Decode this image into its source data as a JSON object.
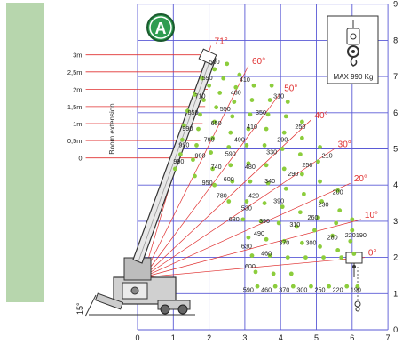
{
  "badge": "A",
  "max_box": {
    "text": "MAX 990 Kg"
  },
  "vertical_label": "Boom extension",
  "tilt_label": "15°",
  "x_ticks": [
    "0",
    "1",
    "2",
    "3",
    "4",
    "5",
    "6",
    "7"
  ],
  "y_ticks": [
    "0",
    "1",
    "2",
    "3",
    "4",
    "5",
    "6",
    "7",
    "8",
    "9"
  ],
  "extensions": [
    {
      "label": "3m",
      "y": 7.6
    },
    {
      "label": "2,5m",
      "y": 7.13
    },
    {
      "label": "2m",
      "y": 6.65
    },
    {
      "label": "1,5m",
      "y": 6.17
    },
    {
      "label": "1m",
      "y": 5.7
    },
    {
      "label": "0,5m",
      "y": 5.23
    },
    {
      "label": "0",
      "y": 4.75
    }
  ],
  "angles": [
    {
      "label": "71°",
      "x": 2.15,
      "y": 7.9
    },
    {
      "label": "60°",
      "x": 3.2,
      "y": 7.35
    },
    {
      "label": "50°",
      "x": 4.1,
      "y": 6.6
    },
    {
      "label": "40°",
      "x": 4.95,
      "y": 5.85
    },
    {
      "label": "30°",
      "x": 5.6,
      "y": 5.05
    },
    {
      "label": "20°",
      "x": 6.05,
      "y": 4.1
    },
    {
      "label": "10°",
      "x": 6.35,
      "y": 3.1
    },
    {
      "label": "0°",
      "x": 6.45,
      "y": 2.05
    }
  ],
  "capacity_labels": [
    {
      "t": "500",
      "x": 2.15,
      "y": 7.35
    },
    {
      "t": "590",
      "x": 1.95,
      "y": 6.9
    },
    {
      "t": "410",
      "x": 3.0,
      "y": 6.85
    },
    {
      "t": "710",
      "x": 1.75,
      "y": 6.4
    },
    {
      "t": "480",
      "x": 2.75,
      "y": 6.5
    },
    {
      "t": "310",
      "x": 3.95,
      "y": 6.4
    },
    {
      "t": "850",
      "x": 1.55,
      "y": 5.95
    },
    {
      "t": "550",
      "x": 2.45,
      "y": 6.05
    },
    {
      "t": "350",
      "x": 3.45,
      "y": 5.95
    },
    {
      "t": "990",
      "x": 1.4,
      "y": 5.5
    },
    {
      "t": "650",
      "x": 2.2,
      "y": 5.65
    },
    {
      "t": "410",
      "x": 3.2,
      "y": 5.55
    },
    {
      "t": "250",
      "x": 4.55,
      "y": 5.55
    },
    {
      "t": "990",
      "x": 1.3,
      "y": 5.05
    },
    {
      "t": "790",
      "x": 2.0,
      "y": 5.2
    },
    {
      "t": "490",
      "x": 2.85,
      "y": 5.2
    },
    {
      "t": "290",
      "x": 4.05,
      "y": 5.2
    },
    {
      "t": "990",
      "x": 1.75,
      "y": 4.75
    },
    {
      "t": "590",
      "x": 2.6,
      "y": 4.8
    },
    {
      "t": "330",
      "x": 3.75,
      "y": 4.85
    },
    {
      "t": "210",
      "x": 5.3,
      "y": 4.75
    },
    {
      "t": "990",
      "x": 1.15,
      "y": 4.6
    },
    {
      "t": "740",
      "x": 2.2,
      "y": 4.45
    },
    {
      "t": "480",
      "x": 3.15,
      "y": 4.45
    },
    {
      "t": "250",
      "x": 4.75,
      "y": 4.5
    },
    {
      "t": "600",
      "x": 2.55,
      "y": 4.1
    },
    {
      "t": "290",
      "x": 4.35,
      "y": 4.25
    },
    {
      "t": "950",
      "x": 1.95,
      "y": 4.0
    },
    {
      "t": "340",
      "x": 3.7,
      "y": 4.05
    },
    {
      "t": "780",
      "x": 2.35,
      "y": 3.65
    },
    {
      "t": "420",
      "x": 3.25,
      "y": 3.65
    },
    {
      "t": "200",
      "x": 5.6,
      "y": 3.75
    },
    {
      "t": "530",
      "x": 3.05,
      "y": 3.3
    },
    {
      "t": "390",
      "x": 3.95,
      "y": 3.5
    },
    {
      "t": "230",
      "x": 5.2,
      "y": 3.4
    },
    {
      "t": "680",
      "x": 2.7,
      "y": 3.0
    },
    {
      "t": "390",
      "x": 3.55,
      "y": 2.95
    },
    {
      "t": "260",
      "x": 4.9,
      "y": 3.05
    },
    {
      "t": "490",
      "x": 3.4,
      "y": 2.6
    },
    {
      "t": "310",
      "x": 4.4,
      "y": 2.85
    },
    {
      "t": "630",
      "x": 3.05,
      "y": 2.25
    },
    {
      "t": "370",
      "x": 4.1,
      "y": 2.35
    },
    {
      "t": "280",
      "x": 5.45,
      "y": 2.5
    },
    {
      "t": "220",
      "x": 5.95,
      "y": 2.55
    },
    {
      "t": "190",
      "x": 6.25,
      "y": 2.55
    },
    {
      "t": "460",
      "x": 3.6,
      "y": 2.05
    },
    {
      "t": "300",
      "x": 4.85,
      "y": 2.35
    },
    {
      "t": "600",
      "x": 3.15,
      "y": 1.7
    },
    {
      "t": "590",
      "x": 3.1,
      "y": 1.05
    },
    {
      "t": "460",
      "x": 3.6,
      "y": 1.05
    },
    {
      "t": "370",
      "x": 4.1,
      "y": 1.05
    },
    {
      "t": "300",
      "x": 4.6,
      "y": 1.05
    },
    {
      "t": "250",
      "x": 5.1,
      "y": 1.05
    },
    {
      "t": "220",
      "x": 5.6,
      "y": 1.05
    },
    {
      "t": "190",
      "x": 6.1,
      "y": 1.05
    }
  ],
  "points": [
    [
      1.8,
      6.95
    ],
    [
      2.15,
      7.2
    ],
    [
      2.5,
      7.35
    ],
    [
      1.6,
      6.5
    ],
    [
      2.0,
      6.75
    ],
    [
      2.4,
      6.95
    ],
    [
      2.85,
      7.05
    ],
    [
      1.4,
      6.05
    ],
    [
      1.85,
      6.35
    ],
    [
      2.3,
      6.55
    ],
    [
      2.75,
      6.7
    ],
    [
      3.25,
      6.75
    ],
    [
      3.75,
      6.75
    ],
    [
      1.3,
      5.65
    ],
    [
      1.75,
      5.95
    ],
    [
      2.2,
      6.15
    ],
    [
      2.7,
      6.3
    ],
    [
      3.2,
      6.35
    ],
    [
      3.7,
      6.35
    ],
    [
      4.2,
      6.3
    ],
    [
      1.25,
      5.25
    ],
    [
      1.7,
      5.55
    ],
    [
      2.15,
      5.75
    ],
    [
      2.65,
      5.9
    ],
    [
      3.15,
      5.95
    ],
    [
      3.65,
      5.95
    ],
    [
      4.15,
      5.9
    ],
    [
      4.6,
      5.75
    ],
    [
      1.2,
      4.85
    ],
    [
      1.65,
      5.1
    ],
    [
      2.1,
      5.3
    ],
    [
      2.6,
      5.45
    ],
    [
      3.1,
      5.55
    ],
    [
      3.6,
      5.55
    ],
    [
      4.1,
      5.45
    ],
    [
      4.6,
      5.3
    ],
    [
      5.1,
      5.05
    ],
    [
      1.05,
      4.45
    ],
    [
      1.55,
      4.7
    ],
    [
      2.05,
      4.9
    ],
    [
      2.55,
      5.05
    ],
    [
      3.05,
      5.1
    ],
    [
      3.55,
      5.1
    ],
    [
      4.05,
      5.0
    ],
    [
      4.55,
      4.85
    ],
    [
      5.05,
      4.65
    ],
    [
      1.6,
      4.25
    ],
    [
      2.1,
      4.45
    ],
    [
      2.6,
      4.55
    ],
    [
      3.1,
      4.6
    ],
    [
      3.6,
      4.55
    ],
    [
      4.1,
      4.45
    ],
    [
      4.6,
      4.3
    ],
    [
      5.1,
      4.1
    ],
    [
      5.6,
      3.85
    ],
    [
      2.15,
      4.0
    ],
    [
      2.65,
      4.1
    ],
    [
      3.15,
      4.1
    ],
    [
      3.65,
      4.05
    ],
    [
      4.15,
      3.9
    ],
    [
      4.65,
      3.75
    ],
    [
      5.15,
      3.55
    ],
    [
      5.65,
      3.3
    ],
    [
      6.0,
      3.05
    ],
    [
      2.55,
      3.55
    ],
    [
      3.05,
      3.55
    ],
    [
      3.55,
      3.5
    ],
    [
      4.05,
      3.4
    ],
    [
      4.55,
      3.25
    ],
    [
      5.05,
      3.1
    ],
    [
      5.55,
      2.95
    ],
    [
      6.0,
      2.75
    ],
    [
      2.95,
      3.05
    ],
    [
      3.45,
      3.0
    ],
    [
      3.95,
      2.95
    ],
    [
      4.45,
      2.85
    ],
    [
      4.95,
      2.75
    ],
    [
      5.45,
      2.6
    ],
    [
      5.95,
      2.45
    ],
    [
      3.1,
      2.55
    ],
    [
      3.6,
      2.5
    ],
    [
      4.1,
      2.45
    ],
    [
      4.6,
      2.4
    ],
    [
      5.1,
      2.3
    ],
    [
      5.6,
      2.2
    ],
    [
      6.05,
      2.1
    ],
    [
      3.2,
      2.05
    ],
    [
      3.7,
      2.05
    ],
    [
      4.2,
      2.0
    ],
    [
      4.7,
      2.0
    ],
    [
      5.2,
      2.0
    ],
    [
      5.7,
      2.0
    ],
    [
      3.3,
      1.6
    ],
    [
      3.8,
      1.55
    ],
    [
      4.3,
      1.55
    ],
    [
      3.35,
      1.2
    ],
    [
      3.85,
      1.2
    ],
    [
      4.35,
      1.2
    ],
    [
      4.85,
      1.2
    ],
    [
      5.35,
      1.2
    ],
    [
      5.85,
      1.2
    ],
    [
      6.15,
      1.2
    ]
  ],
  "colors": {
    "grid": "#5a5ad6",
    "ray": "#e03030",
    "point": "#8ccd3c",
    "badge": "#2f9c50",
    "side": "#b7d6ad"
  }
}
